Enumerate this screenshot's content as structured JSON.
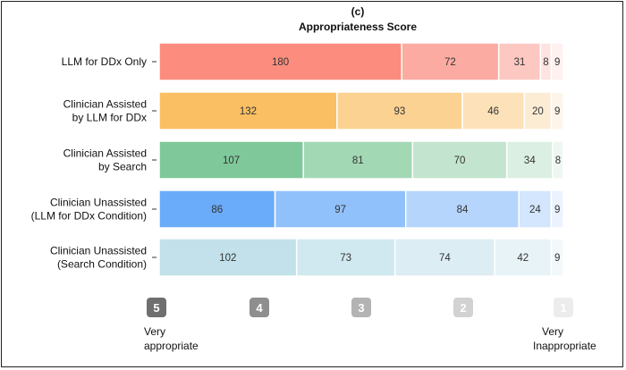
{
  "chart_data": {
    "type": "bar",
    "orientation": "horizontal",
    "stacked": true,
    "panel_label": "(c)",
    "title": "Appropriateness Score",
    "categories": [
      [
        "LLM for DDx Only"
      ],
      [
        "Clinician Assisted",
        "by LLM for DDx"
      ],
      [
        "Clinician Assisted",
        "by Search"
      ],
      [
        "Clinician Unassisted",
        "(LLM for DDx Condition)"
      ],
      [
        "Clinician Unassisted",
        "(Search Condition)"
      ]
    ],
    "series": [
      {
        "score": "5",
        "values": [
          180,
          132,
          107,
          86,
          102
        ]
      },
      {
        "score": "4",
        "values": [
          72,
          93,
          81,
          97,
          73
        ]
      },
      {
        "score": "3",
        "values": [
          31,
          46,
          70,
          84,
          74
        ]
      },
      {
        "score": "2",
        "values": [
          8,
          20,
          34,
          24,
          42
        ]
      },
      {
        "score": "1",
        "values": [
          9,
          9,
          8,
          9,
          9
        ]
      }
    ],
    "colors": [
      [
        "#fc8d7e",
        "#fcaba2",
        "#fdc8c2",
        "#fde4e1",
        "#fef1f0"
      ],
      [
        "#fbbf63",
        "#fcd292",
        "#fde1b8",
        "#fdecd4",
        "#fef5ea"
      ],
      [
        "#7fc89a",
        "#a3d8b5",
        "#c3e5cf",
        "#dbf0e2",
        "#eef7f1"
      ],
      [
        "#6aabfa",
        "#91c1fb",
        "#b5d5fc",
        "#d3e6fd",
        "#ebf3fe"
      ],
      [
        "#c2e1ea",
        "#d0e8ef",
        "#dcedf3",
        "#e8f3f7",
        "#f3f9fb"
      ]
    ],
    "scale": {
      "badges": [
        "5",
        "4",
        "3",
        "2",
        "1"
      ],
      "badge_colors": [
        "#6f6f6f",
        "#8e8e8e",
        "#b3b3b3",
        "#d2d2d2",
        "#ececec"
      ],
      "left_label": [
        "Very",
        "appropriate"
      ],
      "right_label": [
        "Very",
        "Inappropriate"
      ]
    }
  }
}
